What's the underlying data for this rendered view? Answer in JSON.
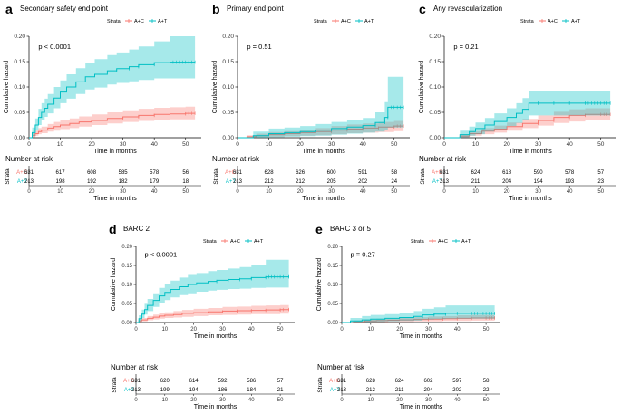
{
  "colors": {
    "ac": "#F8766D",
    "at": "#00BFC4",
    "ac_band": "#F8766D",
    "at_band": "#00BFC4"
  },
  "labels": {
    "strata": "Strata",
    "ylabel": "Cumulative hazard",
    "xlabel": "Time in months",
    "risk_title": "Number at risk",
    "risk_axis": "Strata"
  },
  "chart_data": [
    {
      "type": "line",
      "panel_letter": "a",
      "title": "Secondary safety end point",
      "p_value": "p < 0.0001",
      "xlabel": "Time in months",
      "ylabel": "Cumulative hazard",
      "xlim": [
        0,
        55
      ],
      "ylim": [
        0,
        0.2
      ],
      "xticks": [
        0,
        10,
        20,
        30,
        40,
        50
      ],
      "yticks": [
        0,
        0.05,
        0.1,
        0.15,
        0.2
      ],
      "yticklabels": [
        "0.00",
        "0.05",
        "0.10",
        "0.15",
        "0.20"
      ],
      "legend": [
        "A+C",
        "A+T"
      ],
      "series": [
        {
          "name": "A+C",
          "x": [
            0,
            1,
            2,
            3,
            4,
            6,
            8,
            10,
            13,
            16,
            20,
            25,
            30,
            35,
            40,
            45,
            50,
            53
          ],
          "y": [
            0,
            0.004,
            0.008,
            0.012,
            0.015,
            0.019,
            0.022,
            0.025,
            0.028,
            0.031,
            0.034,
            0.038,
            0.041,
            0.044,
            0.046,
            0.047,
            0.048,
            0.048
          ],
          "lower": [
            0,
            0.001,
            0.004,
            0.007,
            0.009,
            0.012,
            0.014,
            0.017,
            0.019,
            0.022,
            0.025,
            0.028,
            0.031,
            0.033,
            0.035,
            0.036,
            0.036,
            0.036
          ],
          "upper": [
            0,
            0.009,
            0.014,
            0.019,
            0.022,
            0.027,
            0.031,
            0.035,
            0.038,
            0.042,
            0.046,
            0.05,
            0.054,
            0.057,
            0.059,
            0.06,
            0.061,
            0.061
          ]
        },
        {
          "name": "A+T",
          "x": [
            0,
            1,
            2,
            3,
            4,
            5,
            6,
            8,
            10,
            12,
            15,
            18,
            21,
            25,
            28,
            32,
            35,
            40,
            45,
            53
          ],
          "y": [
            0,
            0.01,
            0.025,
            0.04,
            0.05,
            0.058,
            0.066,
            0.078,
            0.09,
            0.1,
            0.11,
            0.12,
            0.125,
            0.132,
            0.136,
            0.14,
            0.144,
            0.148,
            0.149,
            0.149
          ],
          "lower": [
            0,
            0.003,
            0.014,
            0.025,
            0.034,
            0.041,
            0.048,
            0.058,
            0.068,
            0.077,
            0.086,
            0.095,
            0.099,
            0.105,
            0.108,
            0.111,
            0.114,
            0.117,
            0.117,
            0.117
          ],
          "upper": [
            0,
            0.02,
            0.038,
            0.057,
            0.068,
            0.077,
            0.086,
            0.1,
            0.113,
            0.125,
            0.137,
            0.148,
            0.155,
            0.163,
            0.168,
            0.174,
            0.18,
            0.19,
            0.2,
            0.2
          ]
        }
      ],
      "risk": {
        "times": [
          0,
          10,
          20,
          30,
          40,
          50
        ],
        "ac": [
          "631",
          "617",
          "608",
          "585",
          "578",
          "56"
        ],
        "at": [
          "213",
          "198",
          "192",
          "182",
          "179",
          "18"
        ]
      }
    },
    {
      "type": "line",
      "panel_letter": "b",
      "title": "Primary end point",
      "p_value": "p = 0.51",
      "xlabel": "Time in months",
      "ylabel": "Cumulative hazard",
      "xlim": [
        0,
        55
      ],
      "ylim": [
        0,
        0.2
      ],
      "xticks": [
        0,
        10,
        20,
        30,
        40,
        50
      ],
      "yticks": [
        0,
        0.05,
        0.1,
        0.15,
        0.2
      ],
      "yticklabels": [
        "0.00",
        "0.05",
        "0.10",
        "0.15",
        "0.20"
      ],
      "legend": [
        "A+C",
        "A+T"
      ],
      "series": [
        {
          "name": "A+C",
          "x": [
            0,
            3,
            6,
            10,
            15,
            20,
            25,
            30,
            35,
            40,
            45,
            50,
            53
          ],
          "y": [
            0,
            0.002,
            0.004,
            0.006,
            0.008,
            0.01,
            0.012,
            0.015,
            0.017,
            0.019,
            0.021,
            0.023,
            0.023
          ],
          "lower": [
            0,
            0,
            0.001,
            0.002,
            0.003,
            0.004,
            0.005,
            0.007,
            0.009,
            0.01,
            0.011,
            0.013,
            0.013
          ],
          "upper": [
            0,
            0.005,
            0.008,
            0.011,
            0.013,
            0.016,
            0.019,
            0.023,
            0.026,
            0.028,
            0.031,
            0.033,
            0.033
          ]
        },
        {
          "name": "A+T",
          "x": [
            0,
            5,
            10,
            15,
            20,
            25,
            30,
            35,
            40,
            44,
            47,
            48,
            53
          ],
          "y": [
            0,
            0.004,
            0.008,
            0.01,
            0.012,
            0.015,
            0.018,
            0.021,
            0.024,
            0.03,
            0.04,
            0.06,
            0.06
          ],
          "lower": [
            0,
            0,
            0.001,
            0.002,
            0.003,
            0.004,
            0.006,
            0.008,
            0.01,
            0.012,
            0.015,
            0.02,
            0.02
          ],
          "upper": [
            0,
            0.012,
            0.018,
            0.02,
            0.023,
            0.027,
            0.031,
            0.035,
            0.039,
            0.05,
            0.07,
            0.12,
            0.12
          ]
        }
      ],
      "risk": {
        "times": [
          0,
          10,
          20,
          30,
          40,
          50
        ],
        "ac": [
          "631",
          "628",
          "626",
          "600",
          "591",
          "58"
        ],
        "at": [
          "213",
          "212",
          "212",
          "205",
          "202",
          "24"
        ]
      }
    },
    {
      "type": "line",
      "panel_letter": "c",
      "title": "Any revascularization",
      "p_value": "p = 0.21",
      "xlabel": "Time in months",
      "ylabel": "Cumulative hazard",
      "xlim": [
        0,
        55
      ],
      "ylim": [
        0,
        0.2
      ],
      "xticks": [
        0,
        10,
        20,
        30,
        40,
        50
      ],
      "yticks": [
        0,
        0.05,
        0.1,
        0.15,
        0.2
      ],
      "yticklabels": [
        "0.00",
        "0.05",
        "0.10",
        "0.15",
        "0.20"
      ],
      "legend": [
        "A+C",
        "A+T"
      ],
      "series": [
        {
          "name": "A+C",
          "x": [
            0,
            5,
            8,
            12,
            16,
            20,
            25,
            30,
            35,
            40,
            45,
            50,
            53
          ],
          "y": [
            0,
            0.003,
            0.008,
            0.013,
            0.017,
            0.022,
            0.028,
            0.034,
            0.04,
            0.044,
            0.046,
            0.046,
            0.046
          ],
          "lower": [
            0,
            0.001,
            0.004,
            0.007,
            0.01,
            0.014,
            0.019,
            0.024,
            0.029,
            0.032,
            0.034,
            0.034,
            0.034
          ],
          "upper": [
            0,
            0.007,
            0.013,
            0.019,
            0.024,
            0.03,
            0.037,
            0.044,
            0.051,
            0.056,
            0.058,
            0.058,
            0.058
          ]
        },
        {
          "name": "A+T",
          "x": [
            0,
            5,
            8,
            10,
            13,
            16,
            20,
            23,
            25,
            27,
            30,
            35,
            40,
            45,
            53
          ],
          "y": [
            0,
            0.006,
            0.012,
            0.018,
            0.025,
            0.032,
            0.04,
            0.048,
            0.056,
            0.068,
            0.068,
            0.068,
            0.068,
            0.068,
            0.068
          ],
          "lower": [
            0,
            0.001,
            0.004,
            0.007,
            0.012,
            0.017,
            0.023,
            0.029,
            0.035,
            0.044,
            0.044,
            0.044,
            0.044,
            0.044,
            0.044
          ],
          "upper": [
            0,
            0.014,
            0.022,
            0.03,
            0.039,
            0.048,
            0.058,
            0.068,
            0.078,
            0.092,
            0.092,
            0.092,
            0.092,
            0.092,
            0.092
          ]
        }
      ],
      "risk": {
        "times": [
          0,
          10,
          20,
          30,
          40,
          50
        ],
        "ac": [
          "631",
          "624",
          "618",
          "590",
          "578",
          "57"
        ],
        "at": [
          "213",
          "211",
          "204",
          "194",
          "193",
          "23"
        ]
      }
    },
    {
      "type": "line",
      "panel_letter": "d",
      "title": "BARC 2",
      "p_value": "p < 0.0001",
      "xlabel": "Time in months",
      "ylabel": "Cumulative hazard",
      "xlim": [
        0,
        55
      ],
      "ylim": [
        0,
        0.2
      ],
      "xticks": [
        0,
        10,
        20,
        30,
        40,
        50
      ],
      "yticks": [
        0,
        0.05,
        0.1,
        0.15,
        0.2
      ],
      "yticklabels": [
        "0.00",
        "0.05",
        "0.10",
        "0.15",
        "0.20"
      ],
      "legend": [
        "A+C",
        "A+T"
      ],
      "series": [
        {
          "name": "A+C",
          "x": [
            0,
            1,
            2,
            4,
            6,
            8,
            10,
            13,
            16,
            20,
            25,
            30,
            35,
            40,
            45,
            50,
            53
          ],
          "y": [
            0,
            0.004,
            0.007,
            0.011,
            0.014,
            0.017,
            0.019,
            0.021,
            0.024,
            0.026,
            0.028,
            0.03,
            0.031,
            0.032,
            0.033,
            0.034,
            0.034
          ],
          "lower": [
            0,
            0.001,
            0.003,
            0.006,
            0.008,
            0.01,
            0.012,
            0.013,
            0.015,
            0.017,
            0.019,
            0.02,
            0.021,
            0.022,
            0.022,
            0.023,
            0.023
          ],
          "upper": [
            0,
            0.008,
            0.012,
            0.017,
            0.021,
            0.025,
            0.027,
            0.03,
            0.033,
            0.036,
            0.038,
            0.041,
            0.042,
            0.044,
            0.045,
            0.046,
            0.046
          ]
        },
        {
          "name": "A+T",
          "x": [
            0,
            1,
            2,
            3,
            4,
            6,
            8,
            10,
            12,
            15,
            18,
            21,
            25,
            28,
            32,
            36,
            40,
            45,
            53
          ],
          "y": [
            0,
            0.01,
            0.022,
            0.034,
            0.045,
            0.058,
            0.07,
            0.079,
            0.087,
            0.094,
            0.1,
            0.104,
            0.108,
            0.111,
            0.113,
            0.115,
            0.118,
            0.12,
            0.12
          ],
          "lower": [
            0,
            0.003,
            0.012,
            0.021,
            0.03,
            0.041,
            0.051,
            0.059,
            0.066,
            0.072,
            0.077,
            0.081,
            0.084,
            0.086,
            0.088,
            0.089,
            0.091,
            0.092,
            0.092
          ],
          "upper": [
            0,
            0.019,
            0.034,
            0.049,
            0.062,
            0.077,
            0.091,
            0.101,
            0.11,
            0.118,
            0.125,
            0.13,
            0.135,
            0.138,
            0.142,
            0.146,
            0.152,
            0.165,
            0.165
          ]
        }
      ],
      "risk": {
        "times": [
          0,
          10,
          20,
          30,
          40,
          50
        ],
        "ac": [
          "631",
          "620",
          "614",
          "592",
          "586",
          "57"
        ],
        "at": [
          "213",
          "199",
          "194",
          "186",
          "184",
          "21"
        ]
      }
    },
    {
      "type": "line",
      "panel_letter": "e",
      "title": "BARC 3 or 5",
      "p_value": "p = 0.27",
      "xlabel": "Time in months",
      "ylabel": "Cumulative hazard",
      "xlim": [
        0,
        55
      ],
      "ylim": [
        0,
        0.2
      ],
      "xticks": [
        0,
        10,
        20,
        30,
        40,
        50
      ],
      "yticks": [
        0,
        0.05,
        0.1,
        0.15,
        0.2
      ],
      "yticklabels": [
        "0.00",
        "0.05",
        "0.10",
        "0.15",
        "0.20"
      ],
      "legend": [
        "A+C",
        "A+T"
      ],
      "series": [
        {
          "name": "A+C",
          "x": [
            0,
            4,
            8,
            12,
            16,
            20,
            25,
            30,
            35,
            40,
            45,
            50,
            53
          ],
          "y": [
            0,
            0.002,
            0.004,
            0.005,
            0.006,
            0.007,
            0.008,
            0.009,
            0.01,
            0.011,
            0.012,
            0.012,
            0.012
          ],
          "lower": [
            0,
            0,
            0.001,
            0.001,
            0.002,
            0.002,
            0.003,
            0.003,
            0.004,
            0.004,
            0.005,
            0.005,
            0.005
          ],
          "upper": [
            0,
            0.005,
            0.008,
            0.01,
            0.011,
            0.013,
            0.014,
            0.016,
            0.017,
            0.019,
            0.02,
            0.02,
            0.02
          ]
        },
        {
          "name": "A+T",
          "x": [
            0,
            3,
            7,
            10,
            15,
            20,
            25,
            28,
            32,
            36,
            40,
            45,
            53
          ],
          "y": [
            0,
            0.004,
            0.007,
            0.009,
            0.011,
            0.013,
            0.016,
            0.02,
            0.022,
            0.024,
            0.024,
            0.024,
            0.024
          ],
          "lower": [
            0,
            0,
            0.001,
            0.002,
            0.003,
            0.004,
            0.005,
            0.008,
            0.009,
            0.01,
            0.01,
            0.01,
            0.01
          ],
          "upper": [
            0,
            0.012,
            0.017,
            0.02,
            0.022,
            0.025,
            0.03,
            0.036,
            0.04,
            0.045,
            0.045,
            0.045,
            0.045
          ]
        }
      ],
      "risk": {
        "times": [
          0,
          10,
          20,
          30,
          40,
          50
        ],
        "ac": [
          "631",
          "628",
          "624",
          "602",
          "597",
          "58"
        ],
        "at": [
          "213",
          "212",
          "211",
          "204",
          "202",
          "22"
        ]
      }
    }
  ]
}
